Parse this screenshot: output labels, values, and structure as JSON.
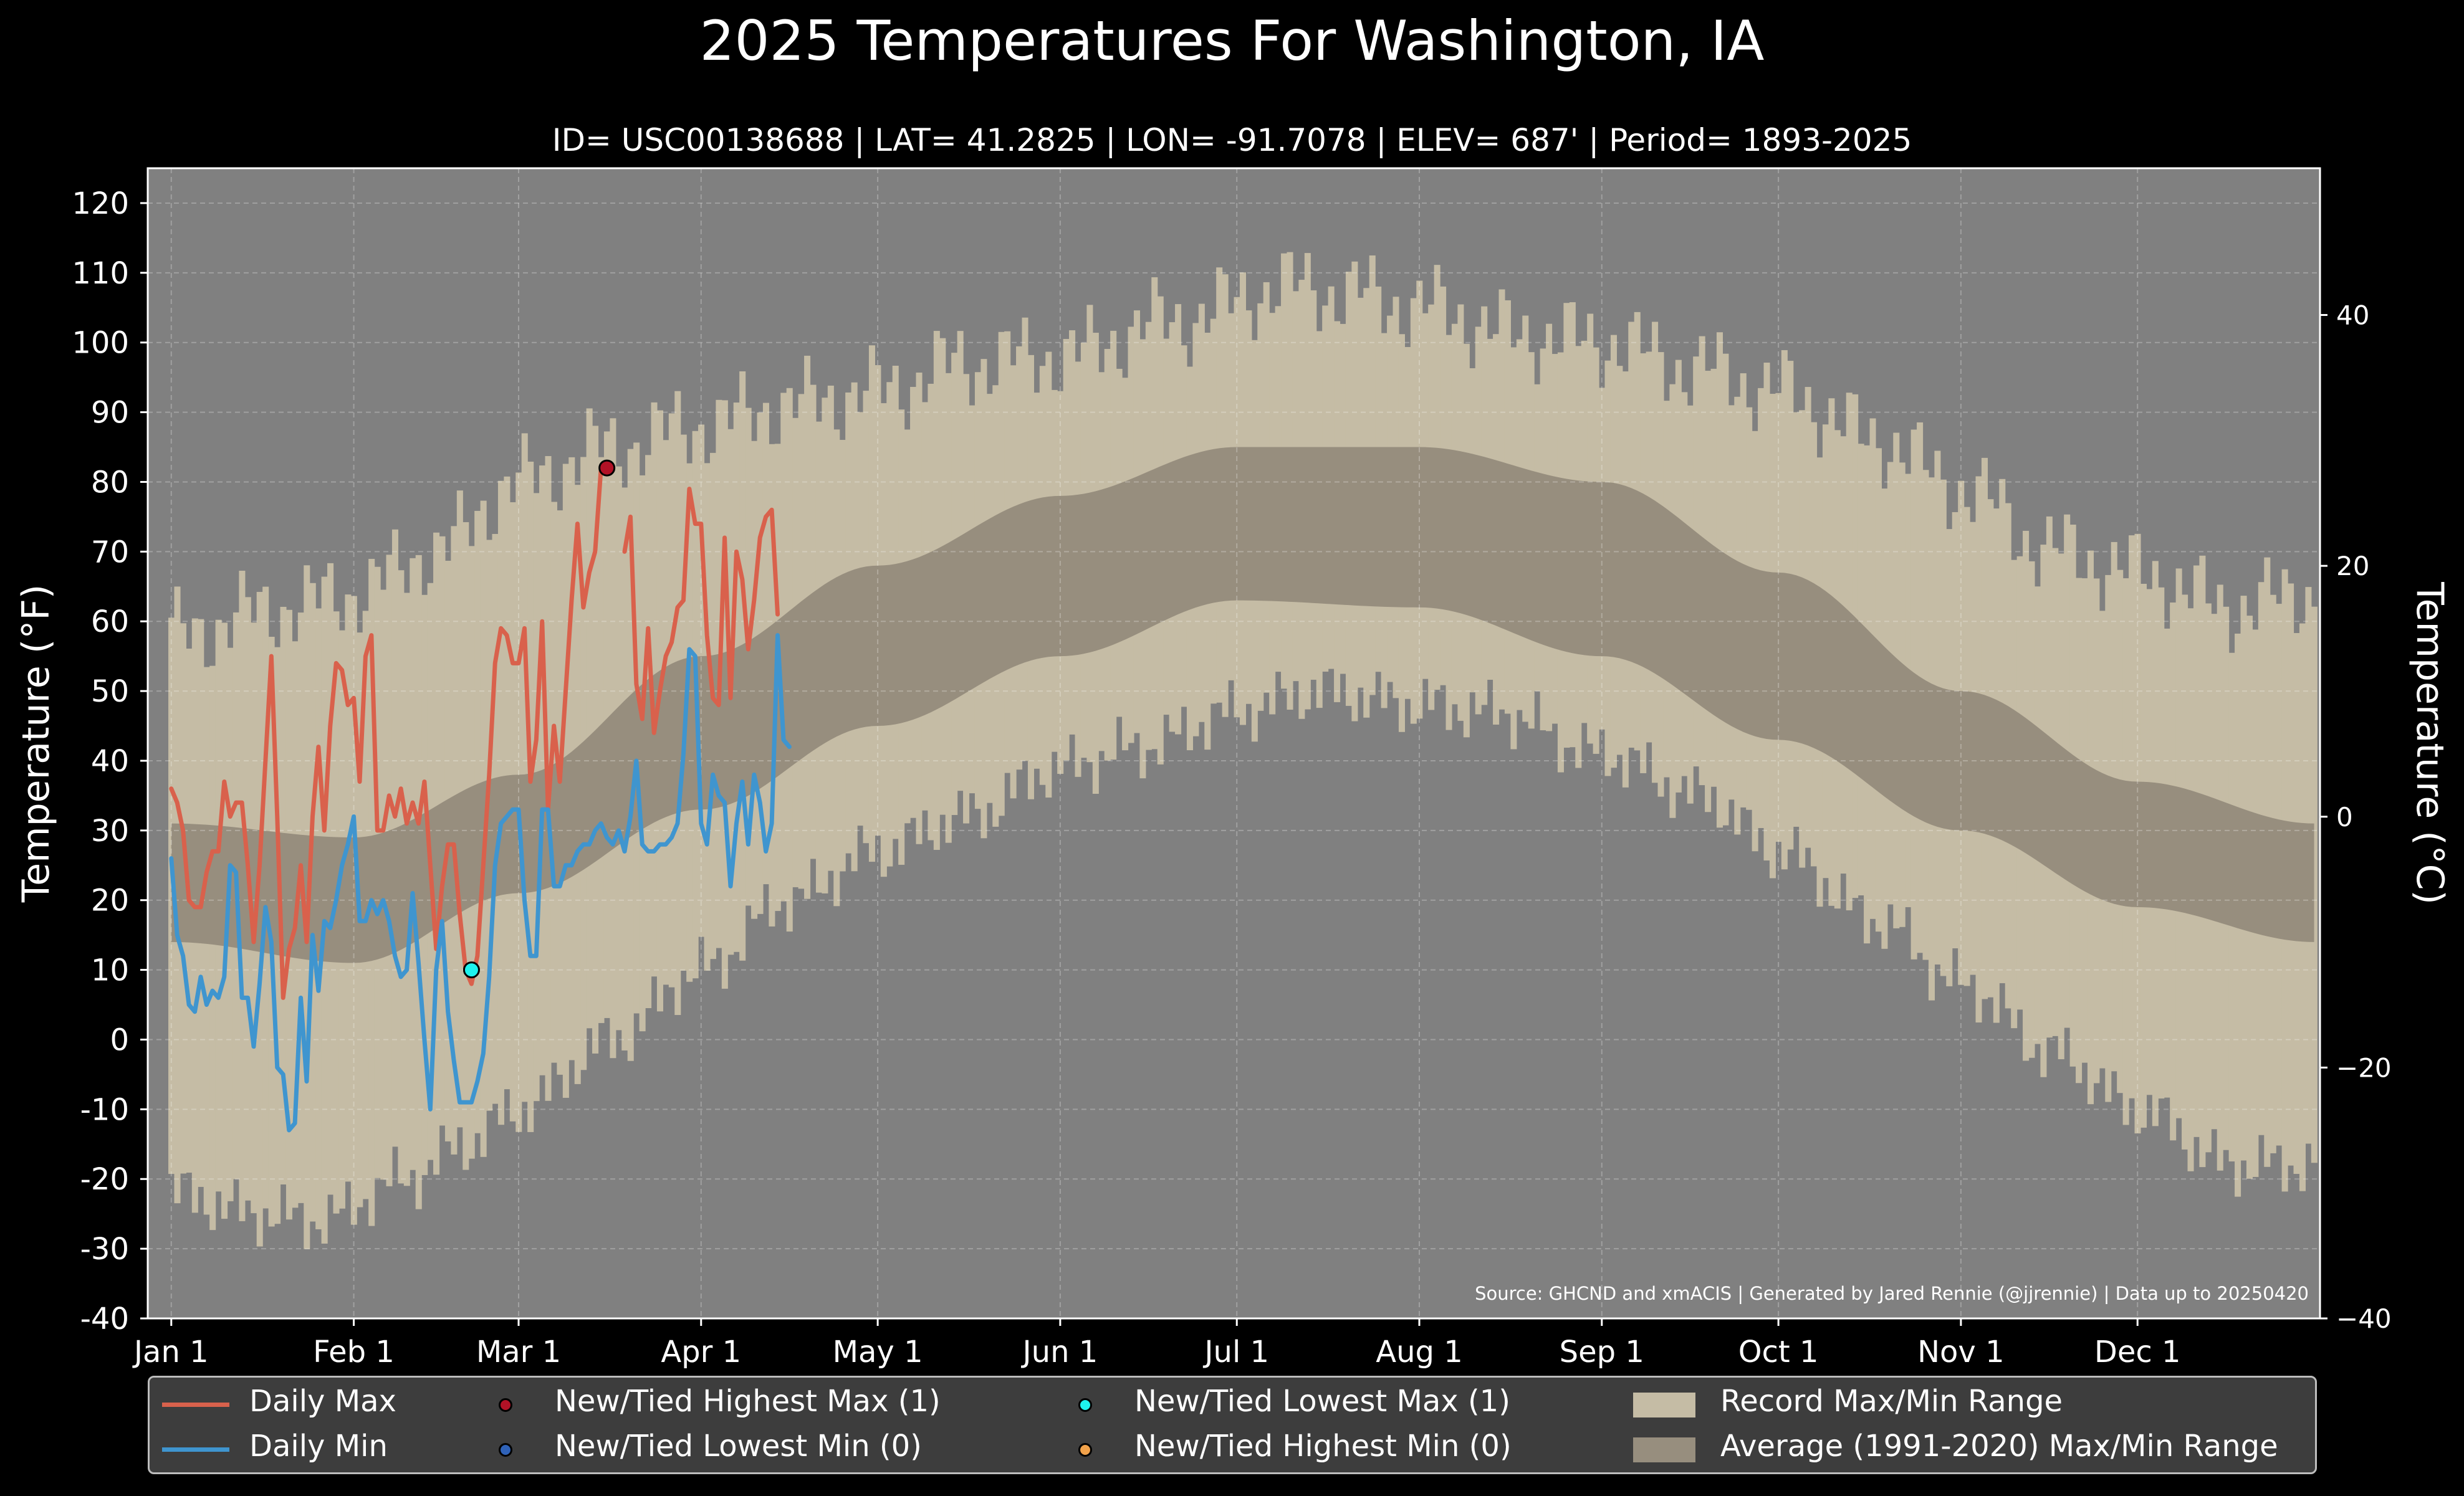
{
  "title": "2025 Temperatures For Washington, IA",
  "subtitle": "ID= USC00138688 | LAT= 41.2825 | LON= -91.7078 | ELEV= 687' | Period= 1893-2025",
  "source": "Source: GHCND and xmACIS | Generated by Jared Rennie (@jjrennie) | Data up to 20250420",
  "colors": {
    "background": "#000000",
    "plot_background": "#808080",
    "record_range": "#c5bca5",
    "normal_range": "#978e7e",
    "daily_max": "#d9614c",
    "daily_min": "#3f95cf",
    "highest_max_marker": "#b11226",
    "lowest_min_marker": "#2f62b8",
    "lowest_max_marker": "#1ef2ee",
    "highest_min_marker": "#f2a24a"
  },
  "legend": [
    {
      "label": "Daily Max",
      "kind": "line",
      "color_key": "daily_max"
    },
    {
      "label": "Daily Min",
      "kind": "line",
      "color_key": "daily_min"
    },
    {
      "label": "New/Tied Highest Max (1)",
      "kind": "dot",
      "color_key": "highest_max_marker"
    },
    {
      "label": "New/Tied Lowest Min (0)",
      "kind": "dot",
      "color_key": "lowest_min_marker"
    },
    {
      "label": "New/Tied Lowest Max (1)",
      "kind": "dot",
      "color_key": "lowest_max_marker"
    },
    {
      "label": "New/Tied Highest Min (0)",
      "kind": "dot",
      "color_key": "highest_min_marker"
    },
    {
      "label": "Record Max/Min Range",
      "kind": "rect",
      "color_key": "record_range"
    },
    {
      "label": "Average (1991-2020) Max/Min Range",
      "kind": "rect",
      "color_key": "normal_range"
    }
  ],
  "chart_data": {
    "type": "line",
    "ylabel": "Temperature ($^\\circ$F)",
    "y2label": "Temperature ($^\\circ$C)",
    "ylim": [
      -40,
      125
    ],
    "y2lim": [
      -40,
      51.7
    ],
    "yticks": [
      -40,
      -30,
      -20,
      -10,
      0,
      10,
      20,
      30,
      40,
      50,
      60,
      70,
      80,
      90,
      100,
      110,
      120
    ],
    "ytick_labels": [
      "-40",
      "-30",
      "-20",
      "-10",
      "0",
      "10",
      "20",
      "30",
      "40",
      "50",
      "60",
      "70",
      "80",
      "90",
      "100",
      "110",
      "120"
    ],
    "y2ticks": [
      -40,
      -20,
      0,
      20,
      40
    ],
    "y2tick_labels": [
      "−40",
      "−20",
      "0",
      "20",
      "40"
    ],
    "xlim": [
      -4,
      365
    ],
    "xticks": [
      0,
      31,
      59,
      90,
      120,
      151,
      181,
      212,
      243,
      273,
      304,
      334
    ],
    "xtick_labels": [
      "Jan 1",
      "Feb 1",
      "Mar 1",
      "Apr 1",
      "May 1",
      "Jun 1",
      "Jul 1",
      "Aug 1",
      "Sep 1",
      "Oct 1",
      "Nov 1",
      "Dec 1"
    ],
    "grid": true,
    "legend_position": "bottom",
    "normals_envelope": {
      "max_anchors": [
        [
          0,
          31
        ],
        [
          31,
          29
        ],
        [
          59,
          38
        ],
        [
          90,
          55
        ],
        [
          120,
          68
        ],
        [
          151,
          78
        ],
        [
          181,
          85
        ],
        [
          212,
          85
        ],
        [
          243,
          80
        ],
        [
          273,
          67
        ],
        [
          304,
          50
        ],
        [
          334,
          37
        ],
        [
          364,
          31
        ]
      ],
      "min_anchors": [
        [
          0,
          14
        ],
        [
          31,
          11
        ],
        [
          59,
          21
        ],
        [
          90,
          33
        ],
        [
          120,
          45
        ],
        [
          151,
          55
        ],
        [
          181,
          63
        ],
        [
          212,
          62
        ],
        [
          243,
          55
        ],
        [
          273,
          43
        ],
        [
          304,
          30
        ],
        [
          334,
          19
        ],
        [
          364,
          14
        ]
      ]
    },
    "record_envelope": {
      "max_anchors": [
        [
          0,
          58
        ],
        [
          20,
          62
        ],
        [
          31,
          64
        ],
        [
          45,
          70
        ],
        [
          59,
          80
        ],
        [
          75,
          85
        ],
        [
          90,
          88
        ],
        [
          105,
          91
        ],
        [
          120,
          93
        ],
        [
          135,
          97
        ],
        [
          151,
          98
        ],
        [
          170,
          103
        ],
        [
          190,
          108
        ],
        [
          200,
          107
        ],
        [
          212,
          105
        ],
        [
          230,
          101
        ],
        [
          243,
          100
        ],
        [
          260,
          96
        ],
        [
          273,
          93
        ],
        [
          290,
          86
        ],
        [
          304,
          79
        ],
        [
          320,
          70
        ],
        [
          334,
          67
        ],
        [
          350,
          62
        ],
        [
          364,
          64
        ]
      ],
      "min_anchors": [
        [
          0,
          -22
        ],
        [
          15,
          -25
        ],
        [
          25,
          -26
        ],
        [
          40,
          -20
        ],
        [
          50,
          -15
        ],
        [
          59,
          -10
        ],
        [
          75,
          0
        ],
        [
          90,
          10
        ],
        [
          105,
          20
        ],
        [
          120,
          27
        ],
        [
          135,
          32
        ],
        [
          151,
          39
        ],
        [
          165,
          42
        ],
        [
          181,
          47
        ],
        [
          195,
          50
        ],
        [
          212,
          48
        ],
        [
          225,
          47
        ],
        [
          243,
          41
        ],
        [
          260,
          35
        ],
        [
          273,
          27
        ],
        [
          290,
          17
        ],
        [
          304,
          8
        ],
        [
          320,
          -2
        ],
        [
          334,
          -10
        ],
        [
          350,
          -18
        ],
        [
          364,
          -18
        ]
      ]
    },
    "series": [
      {
        "name": "Daily Max",
        "color_key": "daily_max",
        "x_start": 0,
        "values": [
          36,
          34,
          30,
          20,
          19,
          19,
          24,
          27,
          27,
          37,
          32,
          34,
          34,
          25,
          14,
          25,
          40,
          55,
          32,
          6,
          13,
          16,
          25,
          14,
          32,
          42,
          30,
          45,
          54,
          53,
          48,
          49,
          37,
          55,
          58,
          30,
          30,
          35,
          32,
          36,
          31,
          34,
          31,
          37,
          25,
          13,
          22,
          28,
          28,
          18,
          10,
          8,
          12,
          25,
          38,
          54,
          59,
          58,
          54,
          54,
          59,
          37,
          43,
          60,
          33,
          45,
          37,
          50,
          63,
          74,
          62,
          67,
          70,
          82,
          null,
          null,
          null,
          70,
          75,
          51,
          46,
          59,
          44,
          50,
          55,
          57,
          62,
          63,
          79,
          74,
          74,
          58,
          49,
          48,
          72,
          49,
          70,
          66,
          56,
          63,
          72,
          75,
          76,
          61
        ]
      },
      {
        "name": "Daily Min",
        "color_key": "daily_min",
        "x_start": 0,
        "values": [
          26,
          15,
          12,
          5,
          4,
          9,
          5,
          7,
          6,
          9,
          25,
          24,
          6,
          6,
          -1,
          8,
          19,
          14,
          -4,
          -5,
          -13,
          -12,
          6,
          -6,
          15,
          7,
          17,
          16,
          20,
          25,
          28,
          32,
          17,
          17,
          20,
          18,
          20,
          17,
          12,
          9,
          10,
          21,
          11,
          0,
          -10,
          10,
          17,
          4,
          -3,
          -9,
          -9,
          -9,
          -6,
          -2,
          9,
          25,
          31,
          32,
          33,
          33,
          20,
          12,
          12,
          33,
          33,
          22,
          22,
          25,
          25,
          27,
          28,
          28,
          30,
          31,
          29,
          28,
          30,
          27,
          32,
          40,
          28,
          27,
          27,
          28,
          28,
          29,
          31,
          41,
          56,
          55,
          31,
          28,
          38,
          35,
          34,
          22,
          31,
          37,
          28,
          38,
          34,
          27,
          31,
          58,
          43,
          42
        ]
      }
    ],
    "markers": [
      {
        "name": "New/Tied Highest Max",
        "x": 74,
        "y": 82,
        "color_key": "highest_max_marker"
      },
      {
        "name": "New/Tied Lowest Max",
        "x": 51,
        "y": 10,
        "color_key": "lowest_max_marker"
      }
    ]
  }
}
